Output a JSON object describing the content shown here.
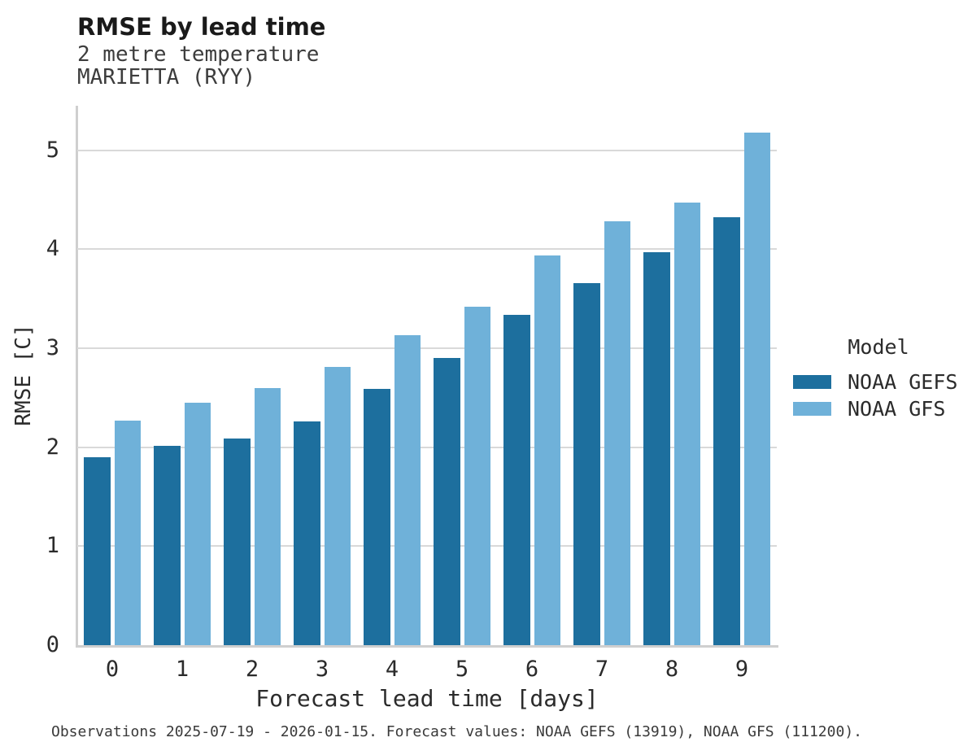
{
  "header": {
    "title": "RMSE by lead time",
    "subtitle_line1": "2 metre temperature",
    "subtitle_line2": "MARIETTA (RYY)"
  },
  "chart_data": {
    "type": "bar",
    "title": "RMSE by lead time",
    "subtitle": [
      "2 metre temperature",
      "MARIETTA (RYY)"
    ],
    "categories": [
      "0",
      "1",
      "2",
      "3",
      "4",
      "5",
      "6",
      "7",
      "8",
      "9"
    ],
    "series": [
      {
        "name": "NOAA GEFS",
        "color": "#1d6f9e",
        "values": [
          1.9,
          2.01,
          2.09,
          2.26,
          2.59,
          2.9,
          3.34,
          3.66,
          3.97,
          4.32
        ]
      },
      {
        "name": "NOAA GFS",
        "color": "#6fb1d9",
        "values": [
          2.27,
          2.45,
          2.6,
          2.81,
          3.13,
          3.42,
          3.94,
          4.28,
          4.47,
          5.18
        ]
      }
    ],
    "xlabel": "Forecast lead time [days]",
    "ylabel": "RMSE [C]",
    "ylim": [
      0,
      5.45
    ],
    "yticks": [
      0,
      1,
      2,
      3,
      4,
      5
    ],
    "grid": "horizontal",
    "legend_position": "right"
  },
  "legend": {
    "title": "Model",
    "entries": [
      {
        "label": "NOAA GEFS",
        "color": "#1d6f9e"
      },
      {
        "label": "NOAA GFS",
        "color": "#6fb1d9"
      }
    ]
  },
  "footer": {
    "caption": "Observations 2025-07-19 - 2026-01-15. Forecast values: NOAA GEFS (13919), NOAA GFS (111200)."
  },
  "colors": {
    "gridline": "#d9d9d9",
    "spine": "#cfcfcf",
    "text_dark": "#1a1a1a",
    "text_body": "#2b2b2b"
  }
}
